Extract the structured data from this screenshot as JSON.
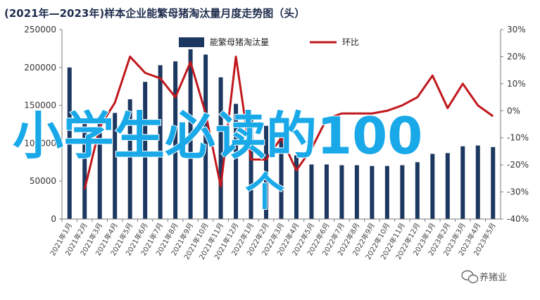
{
  "chart_data": {
    "type": "bar",
    "title": "(2021年—2023年)样本企业能繁母猪淘汰量月度走势图（头）",
    "categories": [
      "2021年1月",
      "2021年2月",
      "2021年3月",
      "2021年4月",
      "2021年5月",
      "2021年6月",
      "2021年7月",
      "2021年8月",
      "2021年9月",
      "2021年10月",
      "2021年11月",
      "2021年12月",
      "2022年1月",
      "2022年2月",
      "2022年3月",
      "2022年4月",
      "2022年5月",
      "2022年6月",
      "2022年7月",
      "2022年8月",
      "2022年9月",
      "2022年10月",
      "2022年11月",
      "2022年12月",
      "2023年1月",
      "2023年2月",
      "2023年3月",
      "2023年4月",
      "2023年5月"
    ],
    "series": [
      {
        "name": "能繁母猪淘汰量",
        "axis": "left",
        "color": "#1c3760",
        "values": [
          200000,
          130000,
          132000,
          140000,
          158000,
          181000,
          203000,
          208000,
          224000,
          217000,
          187000,
          152000,
          133000,
          123000,
          108000,
          84000,
          72000,
          72000,
          71000,
          71000,
          70000,
          70000,
          71000,
          75000,
          86000,
          87000,
          96000,
          97000,
          95000
        ]
      },
      {
        "name": "环比",
        "axis": "right",
        "color": "#c0181d",
        "values": [
          null,
          -29,
          -6,
          3,
          20,
          14,
          12,
          5,
          18,
          -1,
          -28,
          20,
          -18,
          -18,
          -10,
          -22,
          -14,
          -3,
          -1,
          -1,
          -1,
          0,
          2,
          5,
          13,
          1,
          10,
          2,
          -2
        ]
      }
    ],
    "ylim_left": [
      0,
      250000
    ],
    "ylim_right": [
      -40,
      30
    ],
    "yticks_left": [
      "0",
      "50000",
      "100000",
      "150000",
      "200000",
      "250000"
    ],
    "yticks_right": [
      "-40%",
      "-30%",
      "-20%",
      "-10%",
      "0%",
      "10%",
      "20%",
      "30%"
    ],
    "legend_position": "top-center"
  },
  "overlay_text": "小学生必读的100个",
  "watermark": "养猪业",
  "watermark_icon": "wechat-icon"
}
